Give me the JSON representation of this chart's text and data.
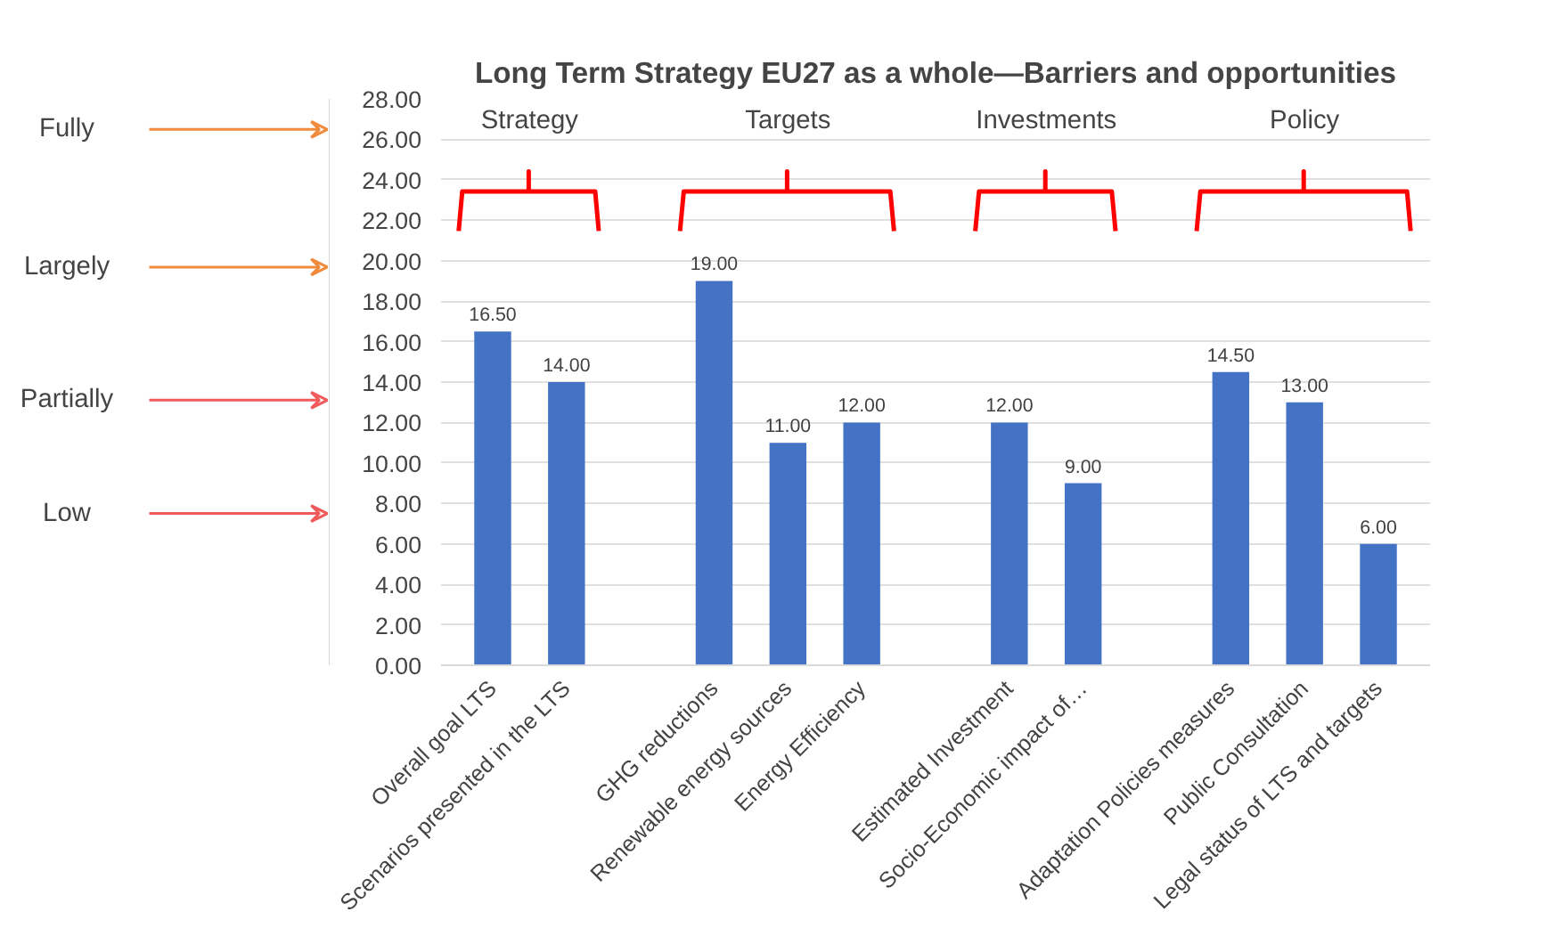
{
  "chart_data": {
    "type": "bar",
    "title": "Long Term Strategy EU27 as a whole—Barriers and opportunities",
    "categories": [
      "Overall goal LTS",
      "Scenarios presented in the LTS",
      null,
      "GHG reductions",
      "Renewable energy sources",
      "Energy Efficiency",
      null,
      "Estimated Investment",
      "Socio-Economic impact of…",
      null,
      "Adaptation Policies measures",
      "Public Consultation",
      "Legal status of LTS and targets"
    ],
    "values": [
      16.5,
      14,
      null,
      19,
      11,
      12,
      null,
      12,
      9,
      null,
      14.5,
      13,
      6
    ],
    "value_labels": [
      "16.50",
      "14.00",
      null,
      "19.00",
      "11.00",
      "12.00",
      null,
      "12.00",
      "9.00",
      null,
      "14.50",
      "13.00",
      "6.00"
    ],
    "color": "#4472c4",
    "ylim": [
      0,
      28
    ],
    "yticks": [
      {
        "value": 0,
        "label": "0.00"
      },
      {
        "value": 2,
        "label": "2.00"
      },
      {
        "value": 4,
        "label": "4.00"
      },
      {
        "value": 6,
        "label": "6.00"
      },
      {
        "value": 8,
        "label": "8.00"
      },
      {
        "value": 10,
        "label": "10.00"
      },
      {
        "value": 12,
        "label": "12.00"
      },
      {
        "value": 14,
        "label": "14.00"
      },
      {
        "value": 16,
        "label": "16.00"
      },
      {
        "value": 18,
        "label": "18.00"
      },
      {
        "value": 20,
        "label": "20.00"
      },
      {
        "value": 22,
        "label": "22.00"
      },
      {
        "value": 24,
        "label": "24.00"
      },
      {
        "value": 26,
        "label": "26.00"
      },
      {
        "value": 28,
        "label": "28.00"
      }
    ],
    "grid": "y",
    "annotations": [
      "Fully",
      "Largely",
      "Partially",
      "Low",
      "Strategy",
      "Targets",
      "Investments",
      "Policy"
    ]
  }
}
